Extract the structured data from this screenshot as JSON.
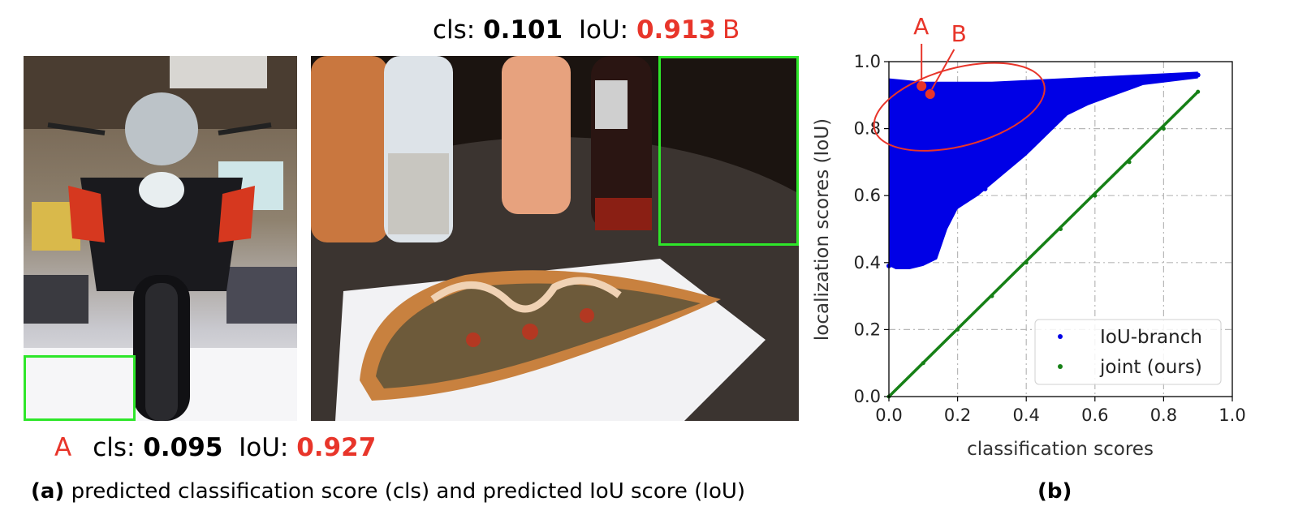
{
  "panel_a": {
    "top": {
      "prefix": "cls: ",
      "cls": "0.101",
      "mid": "  IoU: ",
      "iou": "0.913",
      "tag": "B"
    },
    "bottom": {
      "tag": "A",
      "prefix": "cls: ",
      "cls": "0.095",
      "mid": "  IoU: ",
      "iou": "0.927"
    },
    "caption_bold": "(a)",
    "caption_text": " predicted classification score (cls) and predicted IoU score (IoU)"
  },
  "panel_b": {
    "caption": "(b)",
    "anno_a": "A",
    "anno_b": "B"
  },
  "chart_data": {
    "type": "scatter",
    "xlabel": "classification scores",
    "ylabel": "localization scores (IoU)",
    "xlim": [
      0.0,
      1.0
    ],
    "ylim": [
      0.0,
      1.0
    ],
    "xticks": [
      "0.0",
      "0.2",
      "0.4",
      "0.6",
      "0.8",
      "1.0"
    ],
    "yticks": [
      "0.0",
      "0.2",
      "0.4",
      "0.6",
      "0.8",
      "1.0"
    ],
    "grid": true,
    "legend_position": "lower-right",
    "series": [
      {
        "name": "IoU-branch",
        "color": "#0000e6",
        "points": [
          [
            0.0,
            0.39
          ],
          [
            0.02,
            0.42
          ],
          [
            0.03,
            0.5
          ],
          [
            0.05,
            0.44
          ],
          [
            0.06,
            0.55
          ],
          [
            0.08,
            0.4
          ],
          [
            0.1,
            0.5
          ],
          [
            0.12,
            0.45
          ],
          [
            0.15,
            0.6
          ],
          [
            0.18,
            0.65
          ],
          [
            0.2,
            0.7
          ],
          [
            0.25,
            0.72
          ],
          [
            0.28,
            0.62
          ],
          [
            0.3,
            0.75
          ],
          [
            0.35,
            0.8
          ],
          [
            0.4,
            0.78
          ],
          [
            0.45,
            0.85
          ],
          [
            0.5,
            0.83
          ],
          [
            0.55,
            0.88
          ],
          [
            0.6,
            0.9
          ],
          [
            0.7,
            0.93
          ],
          [
            0.8,
            0.95
          ],
          [
            0.9,
            0.96
          ],
          [
            0.093,
            0.927
          ],
          [
            0.12,
            0.9
          ]
        ]
      },
      {
        "name": "joint (ours)",
        "color": "#168016",
        "points": [
          [
            0.0,
            0.0
          ],
          [
            0.1,
            0.1
          ],
          [
            0.2,
            0.2
          ],
          [
            0.3,
            0.3
          ],
          [
            0.4,
            0.4
          ],
          [
            0.5,
            0.5
          ],
          [
            0.6,
            0.6
          ],
          [
            0.7,
            0.7
          ],
          [
            0.8,
            0.8
          ],
          [
            0.9,
            0.91
          ]
        ]
      }
    ],
    "highlights": [
      {
        "label": "A",
        "x": 0.095,
        "y": 0.927
      },
      {
        "label": "B",
        "x": 0.101,
        "y": 0.913
      }
    ]
  }
}
